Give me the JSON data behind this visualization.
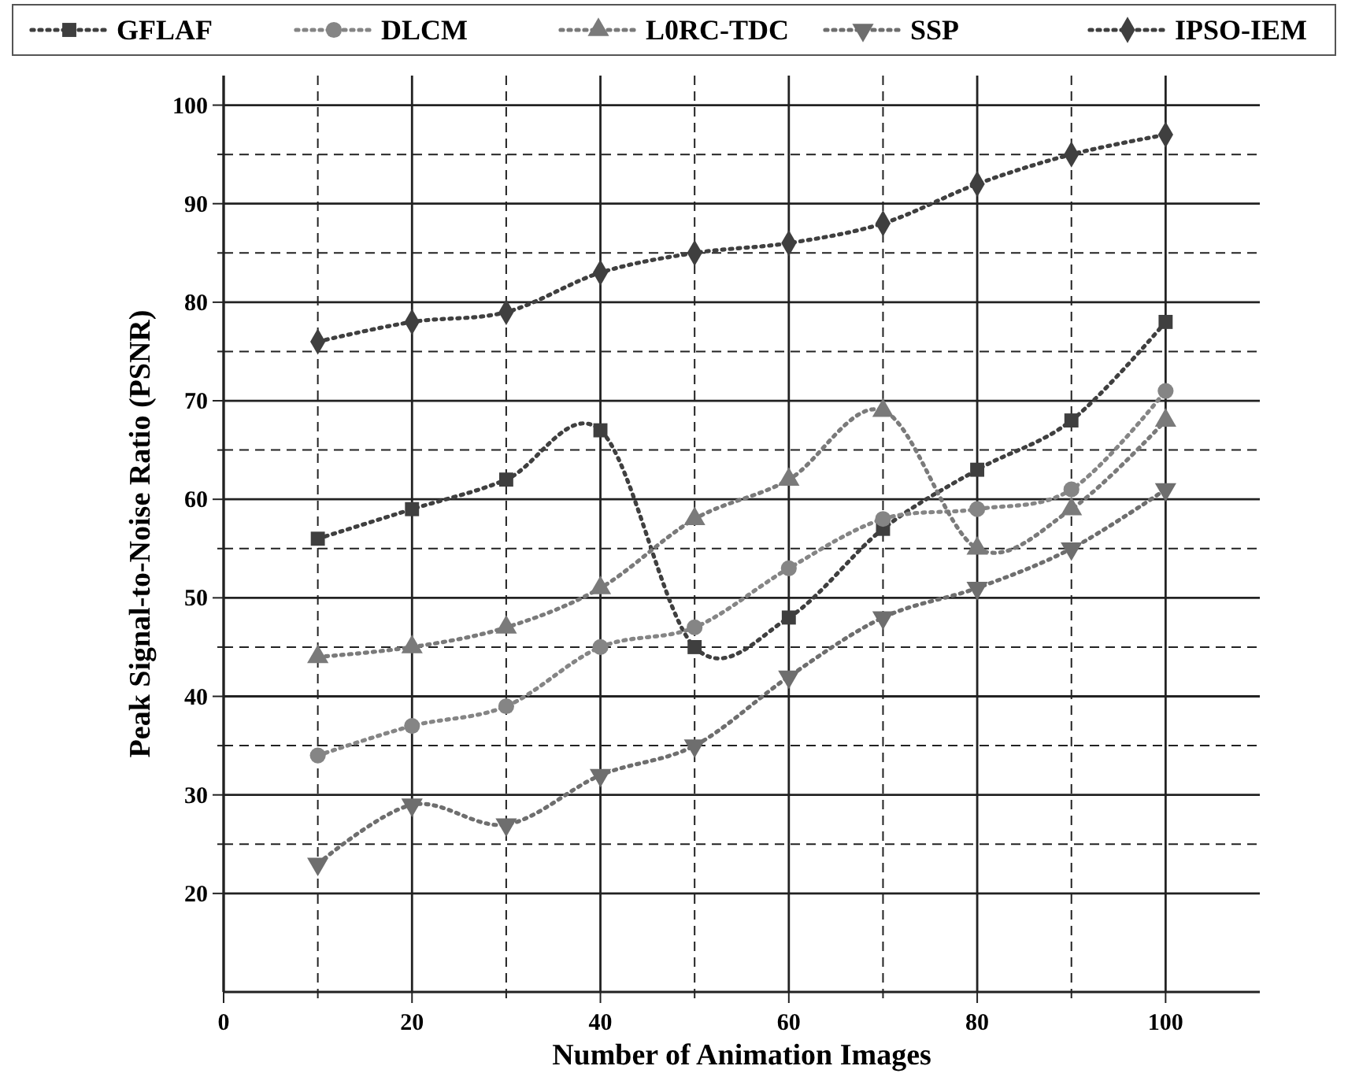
{
  "chart_data": {
    "type": "line",
    "xlabel": "Number of Animation Images",
    "ylabel": "Peak Signal-to-Noise Ratio (PSNR)",
    "x": [
      10,
      20,
      30,
      40,
      50,
      60,
      70,
      80,
      90,
      100
    ],
    "series": [
      {
        "name": "GFLAF",
        "color": "#3f3f3f",
        "marker": "square",
        "values": [
          56,
          59,
          62,
          67,
          45,
          48,
          57,
          63,
          68,
          78
        ]
      },
      {
        "name": "DLCM",
        "color": "#858585",
        "marker": "circle",
        "values": [
          34,
          37,
          39,
          45,
          47,
          53,
          58,
          59,
          61,
          71
        ]
      },
      {
        "name": "L0RC-TDC",
        "color": "#7a7a7a",
        "marker": "triangle",
        "values": [
          44,
          45,
          47,
          51,
          58,
          62,
          69,
          55,
          59,
          68
        ]
      },
      {
        "name": "SSP",
        "color": "#6e6e6e",
        "marker": "triangle-down",
        "values": [
          23,
          29,
          27,
          32,
          35,
          42,
          48,
          51,
          55,
          61
        ]
      },
      {
        "name": "IPSO-IEM",
        "color": "#3f3f3f",
        "marker": "diamond",
        "values": [
          76,
          78,
          79,
          83,
          85,
          86,
          88,
          92,
          95,
          97
        ]
      }
    ],
    "xlim": [
      0,
      110
    ],
    "ylim": [
      10,
      103
    ],
    "xticks": [
      0,
      {
        "value": 10,
        "label": null
      },
      20,
      {
        "value": 30,
        "label": null
      },
      40,
      {
        "value": 50,
        "label": null
      },
      60,
      {
        "value": 70,
        "label": null
      },
      80,
      {
        "value": 90,
        "label": null
      },
      100
    ],
    "yticks": [
      20,
      {
        "value": 25,
        "label": null
      },
      30,
      {
        "value": 35,
        "label": null
      },
      40,
      {
        "value": 45,
        "label": null
      },
      50,
      {
        "value": 55,
        "label": null
      },
      60,
      {
        "value": 65,
        "label": null
      },
      70,
      {
        "value": 75,
        "label": null
      },
      80,
      {
        "value": 85,
        "label": null
      },
      90,
      {
        "value": 95,
        "label": null
      },
      100
    ],
    "grid": true,
    "legend": "top",
    "line_style": "dotted"
  }
}
